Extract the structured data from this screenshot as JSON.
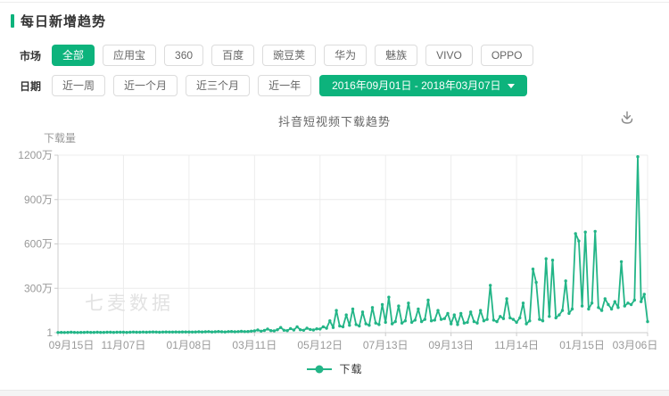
{
  "page": {
    "title": "每日新增趋势"
  },
  "filters": {
    "market": {
      "label": "市场",
      "selected": "全部",
      "options": [
        "全部",
        "应用宝",
        "360",
        "百度",
        "豌豆荚",
        "华为",
        "魅族",
        "VIVO",
        "OPPO"
      ]
    },
    "date": {
      "label": "日期",
      "options": [
        "近一周",
        "近一个月",
        "近三个月",
        "近一年"
      ],
      "range": "2016年09月01日 - 2018年03月07日"
    }
  },
  "colors": {
    "accent": "#0db37c",
    "line": "#23b587",
    "grid": "#ececec",
    "axis": "#cccccc",
    "tick_text": "#999999"
  },
  "chart_data": {
    "type": "line",
    "title": "抖音短视频下载趋势",
    "ylabel": "下载量",
    "unit": "万",
    "legend_label": "下载",
    "legend_position": "bottom",
    "watermark": "七麦数据",
    "grid": true,
    "y_max": 1200,
    "y_tick_values": [
      0,
      300,
      600,
      900,
      1200
    ],
    "y_tick_labels": [
      "1",
      "300万",
      "600万",
      "900万",
      "1200万"
    ],
    "x_tick_labels": [
      "09月15日",
      "11月07日",
      "01月08日",
      "03月11日",
      "05月12日",
      "07月13日",
      "09月13日",
      "11月14日",
      "01月15日",
      "03月06日"
    ],
    "x_range_note": "2016-09-15 to 2018-03-06, values sampled ~every 3 days, unit 万",
    "series": [
      {
        "name": "下载",
        "color": "#23b587",
        "values": [
          1,
          2,
          1,
          2,
          3,
          2,
          1,
          2,
          2,
          3,
          2,
          2,
          3,
          2,
          2,
          3,
          3,
          2,
          3,
          3,
          3,
          2,
          3,
          4,
          3,
          3,
          4,
          3,
          4,
          5,
          4,
          3,
          4,
          5,
          4,
          4,
          5,
          4,
          5,
          5,
          5,
          4,
          5,
          6,
          5,
          6,
          7,
          5,
          6,
          8,
          6,
          5,
          7,
          8,
          6,
          7,
          9,
          7,
          8,
          10,
          12,
          18,
          10,
          15,
          25,
          14,
          12,
          20,
          35,
          16,
          14,
          28,
          18,
          40,
          20,
          16,
          30,
          22,
          18,
          26,
          25,
          40,
          30,
          80,
          35,
          150,
          45,
          40,
          120,
          50,
          160,
          55,
          45,
          140,
          60,
          50,
          170,
          65,
          55,
          190,
          70,
          240,
          60,
          75,
          180,
          65,
          80,
          200,
          70,
          85,
          160,
          75,
          90,
          220,
          80,
          85,
          150,
          90,
          95,
          130,
          60,
          120,
          55,
          130,
          65,
          70,
          140,
          75,
          65,
          150,
          80,
          90,
          320,
          85,
          75,
          110,
          95,
          230,
          100,
          90,
          70,
          100,
          200,
          60,
          80,
          430,
          340,
          90,
          80,
          500,
          110,
          490,
          100,
          120,
          150,
          350,
          130,
          160,
          670,
          620,
          180,
          680,
          160,
          200,
          685,
          170,
          150,
          230,
          190,
          160,
          210,
          170,
          480,
          180,
          200,
          190,
          220,
          1190,
          210,
          260,
          75
        ]
      }
    ]
  }
}
